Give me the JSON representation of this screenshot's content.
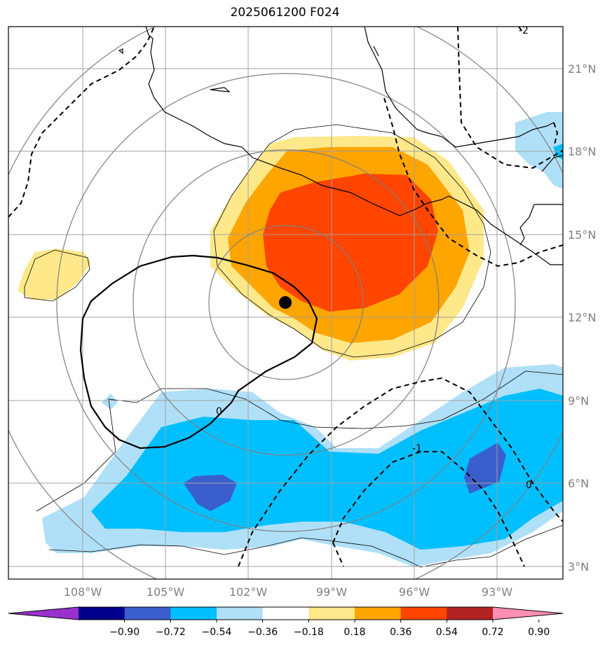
{
  "title": "2025061200 F024",
  "lat_labels": [
    "21°N",
    "18°N",
    "15°N",
    "12°N",
    "9°N",
    "6°N",
    "3°N"
  ],
  "lon_labels": [
    "108°W",
    "105°W",
    "102°W",
    "99°W",
    "96°W",
    "93°W"
  ],
  "contour_labels": [
    "0",
    "-1",
    "0",
    "-2"
  ],
  "colorbar": {
    "ticks": [
      "−0.90",
      "−0.72",
      "−0.54",
      "−0.36",
      "−0.18",
      "0.18",
      "0.36",
      "0.54",
      "0.72",
      "0.90"
    ],
    "colors": [
      "#9932cc",
      "#00008b",
      "#3a5fcd",
      "#00bfff",
      "#b0e0f8",
      "#ffffff",
      "#ffe88a",
      "#ffa500",
      "#ff4500",
      "#b22222",
      "#ff8eb4"
    ]
  },
  "colors": {
    "grid": "#a0a0a0",
    "coast": "#000000",
    "circle": "#808080",
    "pos1": "#ffe88a",
    "pos2": "#ffa500",
    "pos3": "#ff4500",
    "neg1": "#b0e0f8",
    "neg2": "#00bfff",
    "neg3": "#3a5fcd"
  },
  "marker": "storm-center"
}
